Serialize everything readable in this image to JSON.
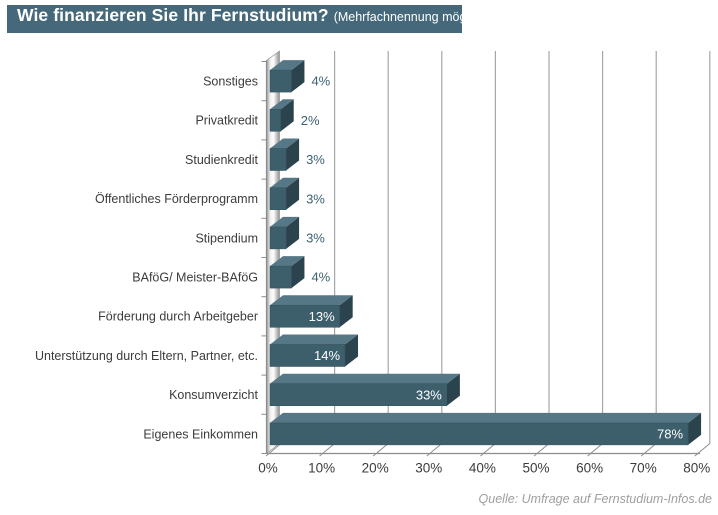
{
  "title": {
    "main": "Wie finanzieren Sie Ihr Fernstudium?",
    "note": "(Mehrfachnennung möglich)"
  },
  "source": "Quelle: Umfrage auf Fernstudium-Infos.de",
  "colors": {
    "title_bg": "#45687a",
    "title_text": "#ffffff",
    "bar_front": "#3d5f6c",
    "bar_top": "#567886",
    "bar_side": "#2a434d",
    "grid": "#a6a6a6",
    "axis": "#8c8c8c",
    "wall_light": "#f5f5f5",
    "wall_dark": "#8f8f8f",
    "category_text": "#3c3c3c",
    "tick_text": "#3c3c3c",
    "value_inside": "#ffffff",
    "value_outside": "#3d6170",
    "source_text": "#9e9e9e"
  },
  "chart_data": {
    "type": "bar",
    "orientation": "horizontal",
    "style": "3d",
    "title": "Wie finanzieren Sie Ihr Fernstudium?",
    "subtitle": "(Mehrfachnennung möglich)",
    "categories": [
      "Sonstiges",
      "Privatkredit",
      "Studienkredit",
      "Öffentliches Förderprogramm",
      "Stipendium",
      "BAföG/ Meister-BAföG",
      "Förderung durch Arbeitgeber",
      "Unterstützung durch Eltern, Partner, etc.",
      "Konsumverzicht",
      "Eigenes Einkommen"
    ],
    "values": [
      4,
      2,
      3,
      3,
      3,
      4,
      13,
      14,
      33,
      78
    ],
    "value_labels": [
      "4%",
      "2%",
      "3%",
      "3%",
      "3%",
      "4%",
      "13%",
      "14%",
      "33%",
      "78%"
    ],
    "x_ticks": [
      "0%",
      "10%",
      "20%",
      "30%",
      "40%",
      "50%",
      "60%",
      "70%",
      "80%"
    ],
    "xlim": [
      0,
      80
    ],
    "xlabel": "",
    "ylabel": "",
    "grid": true,
    "legend": false,
    "inside_label_threshold": 10
  }
}
